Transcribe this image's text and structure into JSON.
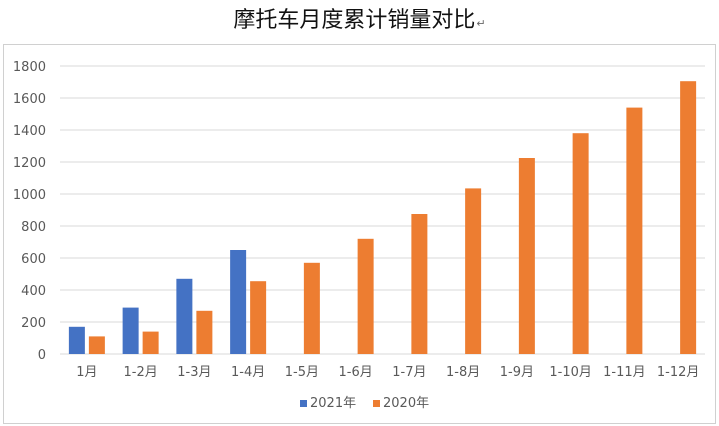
{
  "title": "摩托车月度累计销量对比",
  "title_mark": "↵",
  "colors": {
    "series2021": "#4472c4",
    "series2020": "#ed7d31",
    "grid": "#d9d9d9",
    "axis_text": "#595959"
  },
  "chart_data": {
    "type": "bar",
    "title": "摩托车月度累计销量对比",
    "xlabel": "",
    "ylabel": "",
    "ylim": [
      0,
      1800
    ],
    "yticks": [
      0,
      200,
      400,
      600,
      800,
      1000,
      1200,
      1400,
      1600,
      1800
    ],
    "grid": true,
    "legend_position": "bottom",
    "categories": [
      "1月",
      "1-2月",
      "1-3月",
      "1-4月",
      "1-5月",
      "1-6月",
      "1-7月",
      "1-8月",
      "1-9月",
      "1-10月",
      "1-11月",
      "1-12月"
    ],
    "series": [
      {
        "name": "2021年",
        "color": "#4472c4",
        "values": [
          170,
          290,
          470,
          650,
          null,
          null,
          null,
          null,
          null,
          null,
          null,
          null
        ]
      },
      {
        "name": "2020年",
        "color": "#ed7d31",
        "values": [
          110,
          140,
          270,
          455,
          570,
          720,
          875,
          1035,
          1225,
          1380,
          1540,
          1705
        ]
      }
    ]
  }
}
